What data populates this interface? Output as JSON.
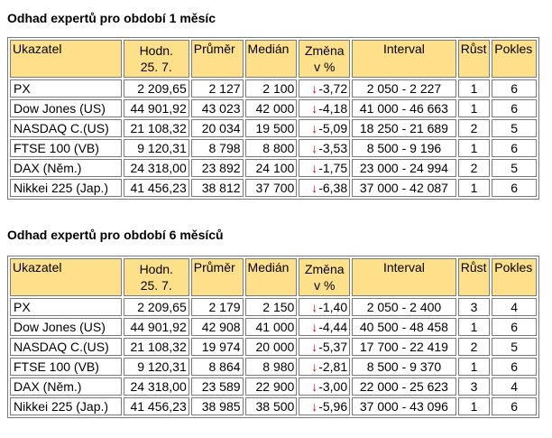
{
  "colors": {
    "header_bg": "#ffe08a",
    "down_arrow": "#e00000",
    "border": "#7a7a7a"
  },
  "icons": {
    "change_indicator": "arrow-down-icon"
  },
  "columns": {
    "indicator": "Ukazatel",
    "value": [
      "Hodn.",
      "25. 7."
    ],
    "mean": "Průměr",
    "median": "Medián",
    "change": [
      "Změna",
      "v %"
    ],
    "interval": "Interval",
    "growth": "Růst",
    "decline": "Pokles"
  },
  "tables": [
    {
      "title": "Odhad expertů pro období 1 měsíc",
      "rows": [
        {
          "name": "PX",
          "value": "2 209,65",
          "mean": "2 127",
          "median": "2 100",
          "change": "-3,72",
          "interval": "2 050 - 2 227",
          "growth": "1",
          "decline": "6"
        },
        {
          "name": "Dow Jones (US)",
          "value": "44 901,92",
          "mean": "43 023",
          "median": "42 000",
          "change": "-4,18",
          "interval": "41 000 - 46 663",
          "growth": "1",
          "decline": "6"
        },
        {
          "name": "NASDAQ C.(US)",
          "value": "21 108,32",
          "mean": "20 034",
          "median": "19 500",
          "change": "-5,09",
          "interval": "18 250 - 21 689",
          "growth": "2",
          "decline": "5"
        },
        {
          "name": "FTSE 100 (VB)",
          "value": "9 120,31",
          "mean": "8 798",
          "median": "8 800",
          "change": "-3,53",
          "interval": "8 500 - 9 196",
          "growth": "1",
          "decline": "6"
        },
        {
          "name": "DAX (Něm.)",
          "value": "24 318,00",
          "mean": "23 892",
          "median": "24 100",
          "change": "-1,75",
          "interval": "23 000 - 24 994",
          "growth": "2",
          "decline": "5"
        },
        {
          "name": "Nikkei 225 (Jap.)",
          "value": "41 456,23",
          "mean": "38 812",
          "median": "37 700",
          "change": "-6,38",
          "interval": "37 000 - 42 087",
          "growth": "1",
          "decline": "6"
        }
      ]
    },
    {
      "title": "Odhad expertů pro období 6 měsíců",
      "rows": [
        {
          "name": "PX",
          "value": "2 209,65",
          "mean": "2 179",
          "median": "2 150",
          "change": "-1,40",
          "interval": "2 050 - 2 400",
          "growth": "3",
          "decline": "4"
        },
        {
          "name": "Dow Jones (US)",
          "value": "44 901,92",
          "mean": "42 908",
          "median": "41 000",
          "change": "-4,44",
          "interval": "40 500 - 48 458",
          "growth": "1",
          "decline": "6"
        },
        {
          "name": "NASDAQ C.(US)",
          "value": "21 108,32",
          "mean": "19 974",
          "median": "20 000",
          "change": "-5,37",
          "interval": "17 700 - 22 419",
          "growth": "2",
          "decline": "5"
        },
        {
          "name": "FTSE 100 (VB)",
          "value": "9 120,31",
          "mean": "8 864",
          "median": "8 980",
          "change": "-2,81",
          "interval": "8 500 - 9 370",
          "growth": "1",
          "decline": "6"
        },
        {
          "name": "DAX (Něm.)",
          "value": "24 318,00",
          "mean": "23 589",
          "median": "22 900",
          "change": "-3,00",
          "interval": "22 000 - 25 623",
          "growth": "3",
          "decline": "4"
        },
        {
          "name": "Nikkei 225 (Jap.)",
          "value": "41 456,23",
          "mean": "38 985",
          "median": "38 500",
          "change": "-5,96",
          "interval": "37 000 - 43 096",
          "growth": "1",
          "decline": "6"
        }
      ]
    }
  ]
}
